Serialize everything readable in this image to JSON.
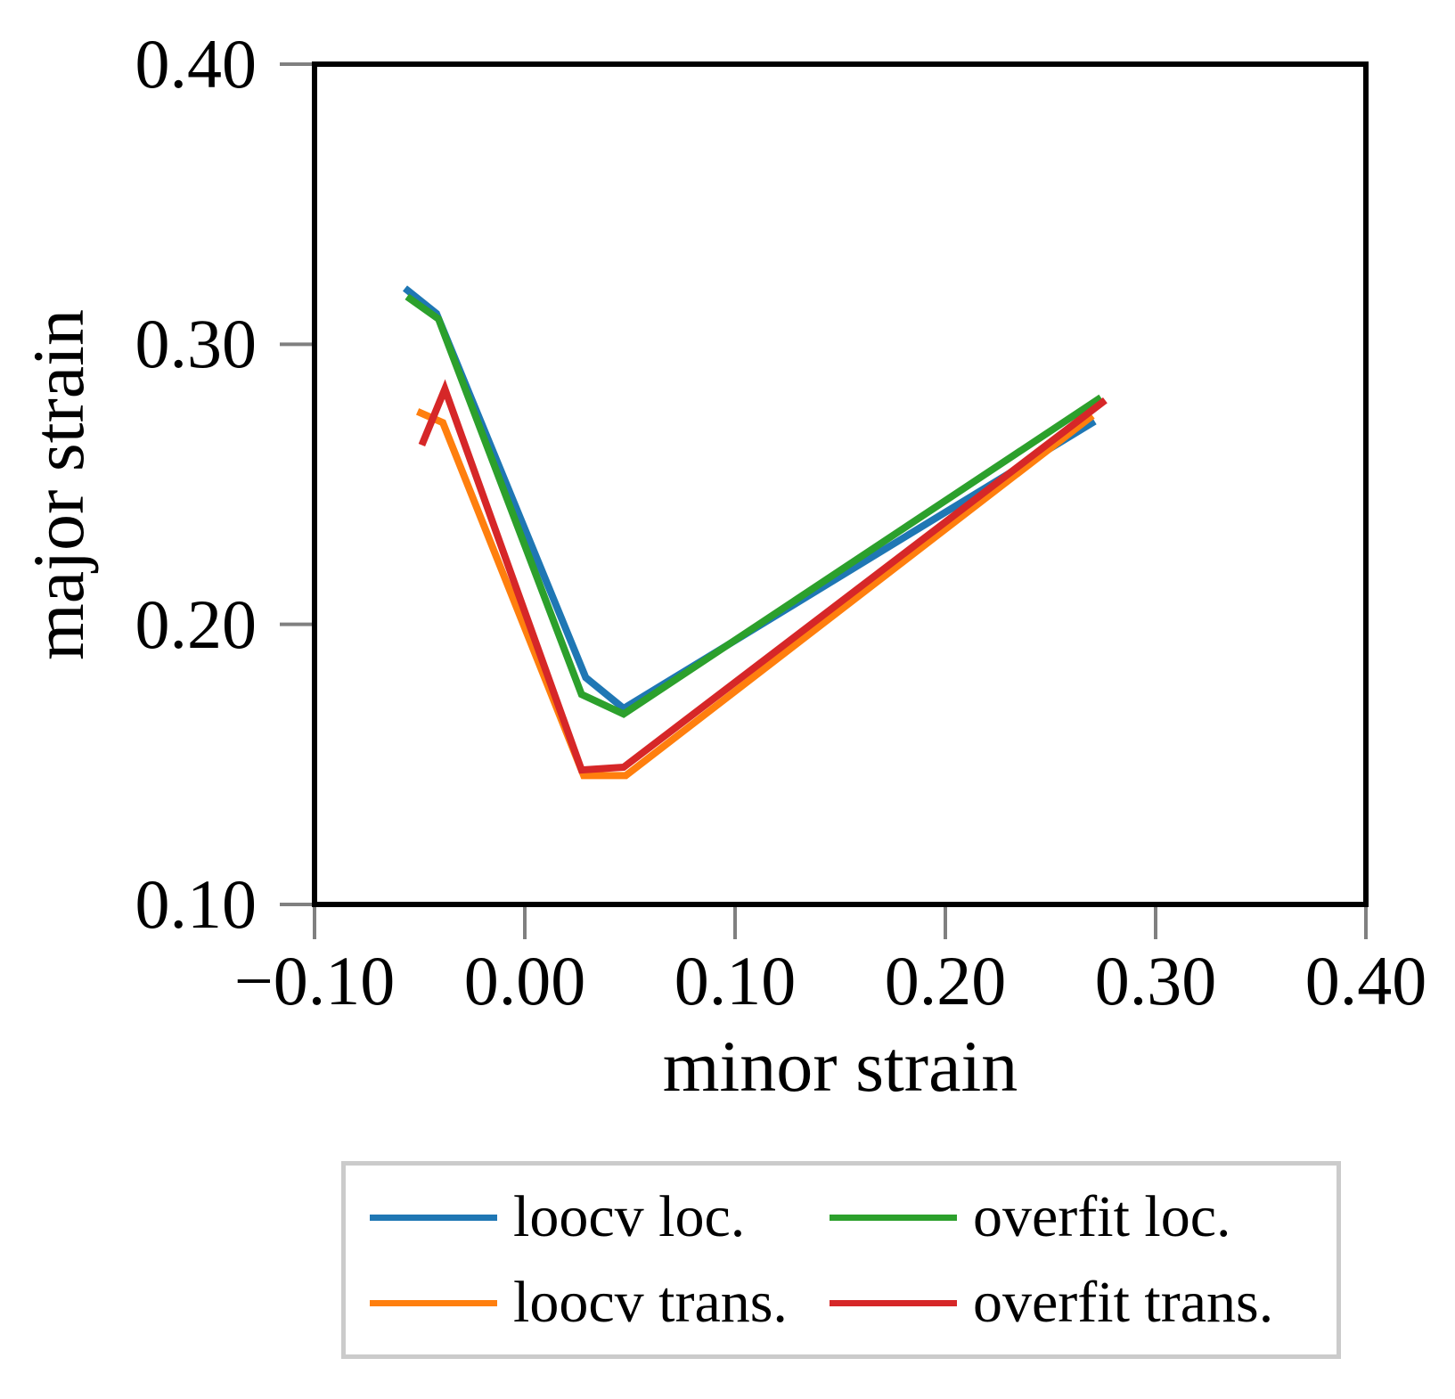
{
  "chart_data": {
    "type": "line",
    "title": "",
    "xlabel": "minor strain",
    "ylabel": "major strain",
    "xlim": [
      -0.1,
      0.4
    ],
    "ylim": [
      0.1,
      0.4
    ],
    "x_ticks": [
      -0.1,
      0.0,
      0.1,
      0.2,
      0.3,
      0.4
    ],
    "x_tick_labels": [
      "−0.10",
      "0.00",
      "0.10",
      "0.20",
      "0.30",
      "0.40"
    ],
    "y_ticks": [
      0.1,
      0.2,
      0.3,
      0.4
    ],
    "y_tick_labels": [
      "0.10",
      "0.20",
      "0.30",
      "0.40"
    ],
    "grid": false,
    "legend_position": "below-axes",
    "series": [
      {
        "name": "loocv loc.",
        "color": "#1f77b4",
        "points": [
          [
            -0.057,
            0.32
          ],
          [
            -0.042,
            0.311
          ],
          [
            0.029,
            0.181
          ],
          [
            0.047,
            0.17
          ],
          [
            0.271,
            0.2725
          ]
        ]
      },
      {
        "name": "loocv trans.",
        "color": "#ff7f0e",
        "points": [
          [
            -0.051,
            0.276
          ],
          [
            -0.039,
            0.272
          ],
          [
            0.028,
            0.146
          ],
          [
            0.048,
            0.146
          ],
          [
            0.27,
            0.2745
          ]
        ]
      },
      {
        "name": "overfit loc.",
        "color": "#2ca02c",
        "points": [
          [
            -0.056,
            0.317
          ],
          [
            -0.041,
            0.309
          ],
          [
            0.027,
            0.175
          ],
          [
            0.047,
            0.168
          ],
          [
            0.274,
            0.281
          ]
        ]
      },
      {
        "name": "overfit trans.",
        "color": "#d62728",
        "points": [
          [
            -0.049,
            0.264
          ],
          [
            -0.038,
            0.284
          ],
          [
            0.027,
            0.148
          ],
          [
            0.047,
            0.149
          ],
          [
            0.276,
            0.28
          ]
        ]
      }
    ],
    "legend_display_order": [
      0,
      2,
      1,
      3
    ]
  },
  "colors": {
    "axis": "#000000",
    "tick": "#808080",
    "legend_border": "#cbcbcb",
    "background": "#ffffff"
  }
}
